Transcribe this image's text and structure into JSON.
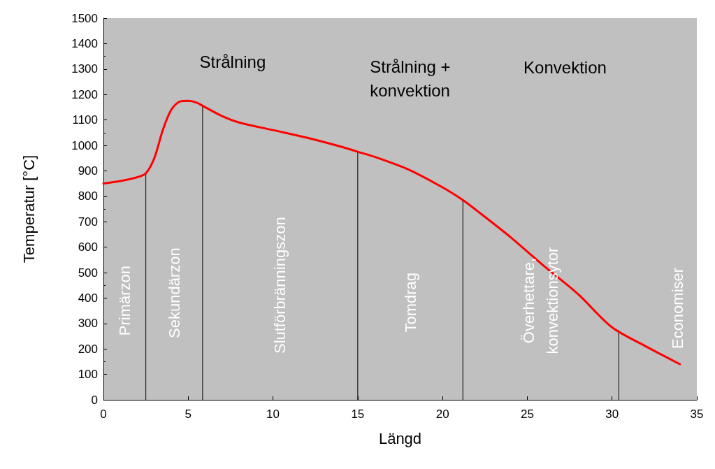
{
  "chart_data": {
    "type": "line",
    "xlabel": "Längd",
    "ylabel": "Temperatur [°C]",
    "xlim": [
      0,
      35
    ],
    "xticks": [
      0,
      5,
      10,
      15,
      20,
      25,
      30,
      35
    ],
    "ylim": [
      0,
      1500
    ],
    "yticks": [
      0,
      100,
      200,
      300,
      400,
      500,
      600,
      700,
      800,
      900,
      1000,
      1100,
      1200,
      1300,
      1400,
      1500
    ],
    "grid": false,
    "marker": "none",
    "line_style": "solid",
    "series": [
      {
        "color": "#ff0000",
        "x": [
          0,
          1,
          2,
          2.5,
          3,
          3.5,
          4,
          4.5,
          5,
          5.5,
          6,
          7,
          8,
          10,
          12,
          14,
          15,
          16,
          18,
          20,
          21.2,
          22,
          24,
          26,
          28,
          30,
          32,
          34
        ],
        "values": [
          850,
          860,
          875,
          890,
          950,
          1060,
          1140,
          1172,
          1175,
          1168,
          1150,
          1115,
          1090,
          1060,
          1030,
          995,
          975,
          955,
          905,
          835,
          785,
          745,
          640,
          525,
          415,
          285,
          210,
          140
        ]
      },
      {
        "color": "#000000",
        "x": [
          2.5,
          2.5
        ],
        "values": [
          0,
          890
        ]
      },
      {
        "color": "#000000",
        "x": [
          5.85,
          5.85
        ],
        "values": [
          0,
          1155
        ]
      },
      {
        "color": "#000000",
        "x": [
          15,
          15
        ],
        "values": [
          0,
          975
        ]
      },
      {
        "color": "#000000",
        "x": [
          21.2,
          21.2
        ],
        "values": [
          0,
          785
        ]
      },
      {
        "color": "#000000",
        "x": [
          30.4,
          30.4
        ],
        "values": [
          0,
          272
        ]
      }
    ],
    "annotations": [
      "Strålning",
      "Strålning +\nkonvektion",
      "Konvektion",
      "Primärzon",
      "Sekundärzon",
      "Slutförbränningszon",
      "Tomdrag",
      "Överhettare,\nkonvektionsytor",
      "Economiser"
    ]
  }
}
